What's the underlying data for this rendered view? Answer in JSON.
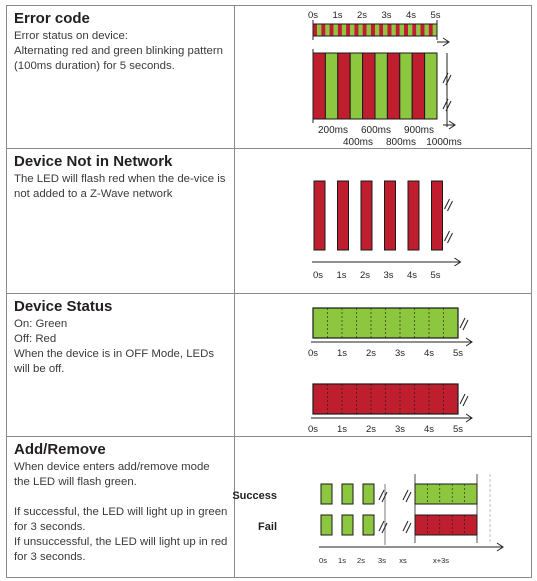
{
  "colors": {
    "red": "#be1e2d",
    "green": "#8dc63f",
    "border": "#1a1a1a"
  },
  "rows": [
    {
      "title": "Error code",
      "lines": [
        "Error status on device:",
        "Alternating red and green blinking pattern (100ms duration) for 5 seconds."
      ],
      "time_labels": [
        "0s",
        "1s",
        "2s",
        "3s",
        "4s",
        "5s"
      ],
      "ms_labels_top": [
        "200ms",
        "600ms",
        "900ms"
      ],
      "ms_labels_bottom": [
        "400ms",
        "800ms",
        "1000ms"
      ]
    },
    {
      "title": "Device Not in Network",
      "lines": [
        "The LED will flash red when the de-vice is not added to a Z-Wave network"
      ],
      "time_labels": [
        "0s",
        "1s",
        "2s",
        "3s",
        "4s",
        "5s"
      ]
    },
    {
      "title": "Device Status",
      "lines": [
        "On: Green",
        "Off: Red",
        "When the device is in OFF Mode, LEDs will be off."
      ],
      "time_labels": [
        "0s",
        "1s",
        "2s",
        "3s",
        "4s",
        "5s"
      ]
    },
    {
      "title": "Add/Remove",
      "lines": [
        "When device enters add/remove mode the LED will flash green.",
        "",
        "If successful, the LED will light up in green for 3 seconds.",
        "If unsuccessful, the LED will light up in red for 3 seconds."
      ],
      "success_label": "Success",
      "fail_label": "Fail",
      "time_labels": [
        "0s",
        "1s",
        "2s",
        "3s",
        "xs",
        "x+3s"
      ]
    }
  ]
}
